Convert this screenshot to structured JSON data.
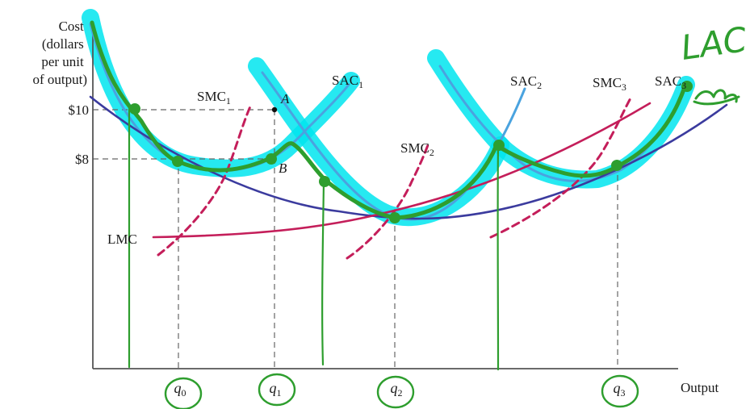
{
  "chart_data": {
    "type": "line",
    "title": "",
    "ylabel_lines": [
      "Cost",
      "(dollars",
      "per unit",
      "of output)"
    ],
    "xlabel": "Output",
    "y_ticks": [
      {
        "value": 10,
        "label": "$10"
      },
      {
        "value": 8,
        "label": "$8"
      }
    ],
    "x_ticks": [
      {
        "base": "q",
        "sub": "0"
      },
      {
        "base": "q",
        "sub": "1"
      },
      {
        "base": "q",
        "sub": "2"
      },
      {
        "base": "q",
        "sub": "3"
      }
    ],
    "points": [
      {
        "name": "A",
        "label": "A"
      },
      {
        "name": "B",
        "label": "B"
      }
    ],
    "series": [
      {
        "name": "SAC1",
        "base": "SAC",
        "sub": "1",
        "color": "#4aa3df"
      },
      {
        "name": "SAC2",
        "base": "SAC",
        "sub": "2",
        "color": "#4aa3df"
      },
      {
        "name": "SAC3",
        "base": "SAC",
        "sub": "3",
        "color": "#4aa3df"
      },
      {
        "name": "SMC1",
        "base": "SMC",
        "sub": "1",
        "color": "#c41e5a",
        "style": "dashed"
      },
      {
        "name": "SMC2",
        "base": "SMC",
        "sub": "2",
        "color": "#c41e5a",
        "style": "dashed"
      },
      {
        "name": "SMC3",
        "base": "SMC",
        "sub": "3",
        "color": "#c41e5a",
        "style": "dashed"
      },
      {
        "name": "LMC",
        "base": "LMC",
        "sub": "",
        "color": "#c41e5a"
      },
      {
        "name": "LAC",
        "base": "",
        "sub": "",
        "color": "#3b3b9e"
      }
    ],
    "annotations": {
      "handwritten_label": "LAC",
      "colors": {
        "highlight": "#00e5ee",
        "ink": "#2e9e2e",
        "lac": "#3b3b9e",
        "marginal": "#c41e5a",
        "sac": "#4aa3df",
        "guides": "#666666",
        "axis": "#555555"
      }
    }
  }
}
